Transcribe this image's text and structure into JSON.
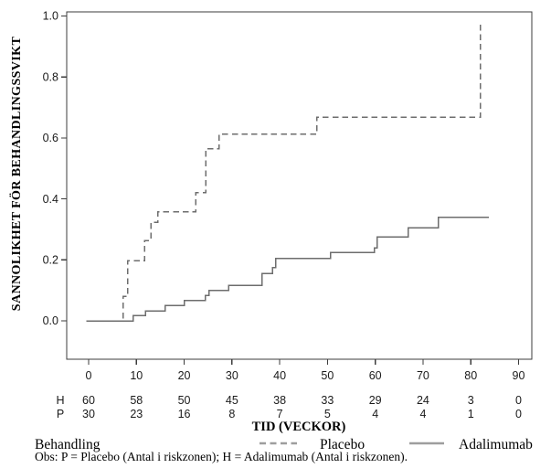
{
  "chart_data": {
    "type": "line",
    "line_style": "step",
    "title": "",
    "xlabel": "TID (VECKOR)",
    "ylabel": "SANNOLIKHET FÖR BEHANDLINGSSVIKT",
    "grid": "off",
    "legend_position": "bottom",
    "x_axis": {
      "tick_labels": [
        "0",
        "10",
        "20",
        "30",
        "40",
        "50",
        "60",
        "70",
        "80",
        "90"
      ],
      "tick_values": [
        0,
        10,
        20,
        30,
        40,
        50,
        60,
        70,
        80,
        90
      ],
      "range": [
        0,
        90
      ]
    },
    "y_axis": {
      "tick_labels": [
        "0.0",
        "0.2",
        "0.4",
        "0.6",
        "0.8",
        "1.0"
      ],
      "tick_values": [
        0.0,
        0.2,
        0.4,
        0.6,
        0.8,
        1.0
      ],
      "range": [
        0,
        1
      ]
    },
    "series": [
      {
        "name": "Placebo",
        "style": "dashed",
        "color": "#6d6d6d",
        "points": [
          [
            -0.5,
            0
          ],
          [
            7.2,
            0
          ],
          [
            7.2,
            0.08
          ],
          [
            8.2,
            0.08
          ],
          [
            8.2,
            0.197
          ],
          [
            11.7,
            0.197
          ],
          [
            11.7,
            0.263
          ],
          [
            13,
            0.263
          ],
          [
            13,
            0.323
          ],
          [
            14.5,
            0.323
          ],
          [
            14.5,
            0.357
          ],
          [
            22.4,
            0.357
          ],
          [
            22.4,
            0.42
          ],
          [
            24.5,
            0.42
          ],
          [
            24.5,
            0.565
          ],
          [
            27.3,
            0.565
          ],
          [
            27.3,
            0.613
          ],
          [
            47.8,
            0.613
          ],
          [
            47.8,
            0.668
          ],
          [
            82,
            0.668
          ],
          [
            82,
            0.985
          ]
        ]
      },
      {
        "name": "Adalimumab",
        "style": "solid",
        "color": "#6d6d6d",
        "points": [
          [
            -0.5,
            0
          ],
          [
            9.3,
            0
          ],
          [
            9.3,
            0.017
          ],
          [
            11.9,
            0.017
          ],
          [
            11.9,
            0.033
          ],
          [
            16,
            0.033
          ],
          [
            16,
            0.05
          ],
          [
            20,
            0.05
          ],
          [
            20,
            0.067
          ],
          [
            24.4,
            0.067
          ],
          [
            24.4,
            0.083
          ],
          [
            25.2,
            0.083
          ],
          [
            25.2,
            0.1
          ],
          [
            29.3,
            0.1
          ],
          [
            29.3,
            0.117
          ],
          [
            36.3,
            0.117
          ],
          [
            36.3,
            0.155
          ],
          [
            38.5,
            0.155
          ],
          [
            38.5,
            0.175
          ],
          [
            39.2,
            0.175
          ],
          [
            39.2,
            0.205
          ],
          [
            50.6,
            0.205
          ],
          [
            50.6,
            0.225
          ],
          [
            59.8,
            0.225
          ],
          [
            59.8,
            0.24
          ],
          [
            60.4,
            0.24
          ],
          [
            60.4,
            0.275
          ],
          [
            66.9,
            0.275
          ],
          [
            66.9,
            0.305
          ],
          [
            73.2,
            0.305
          ],
          [
            73.2,
            0.34
          ],
          [
            83.8,
            0.34
          ]
        ]
      }
    ],
    "risk_table": {
      "x_values": [
        0,
        10,
        20,
        30,
        40,
        50,
        60,
        70,
        80,
        90
      ],
      "rows": [
        {
          "label": "H",
          "values": [
            "60",
            "58",
            "50",
            "45",
            "38",
            "33",
            "29",
            "24",
            "3",
            "0"
          ]
        },
        {
          "label": "P",
          "values": [
            "30",
            "23",
            "16",
            "8",
            "7",
            "5",
            "4",
            "4",
            "1",
            "0"
          ]
        }
      ]
    },
    "legend": {
      "title": "Behandling",
      "entries": [
        {
          "label": "Placebo",
          "style": "dashed"
        },
        {
          "label": "Adalimumab",
          "style": "solid"
        }
      ]
    },
    "note": "Obs: P = Placebo (Antal i riskzonen); H = Adalimumab (Antal i riskzonen)."
  }
}
